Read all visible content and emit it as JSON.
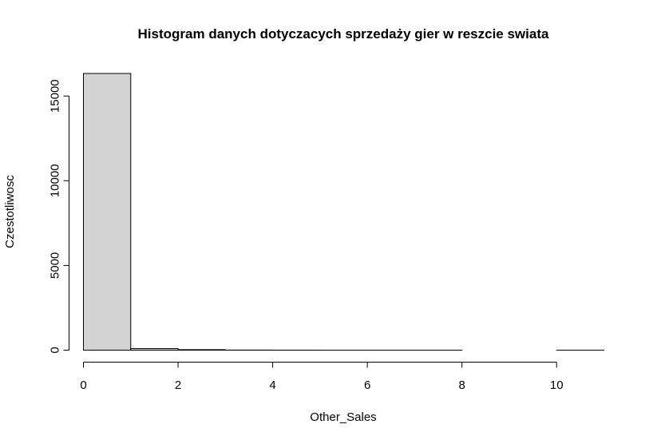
{
  "chart_data": {
    "type": "bar",
    "histogram": true,
    "title": "Histogram danych dotyczacych sprzedaży gier w reszcie swiata",
    "xlabel": "Other_Sales",
    "ylabel": "Czestotliwosc",
    "bins": [
      {
        "start": 0,
        "end": 1,
        "count": 16330
      },
      {
        "start": 1,
        "end": 2,
        "count": 94
      },
      {
        "start": 2,
        "end": 3,
        "count": 30
      },
      {
        "start": 3,
        "end": 4,
        "count": 7
      },
      {
        "start": 4,
        "end": 5,
        "count": 3
      },
      {
        "start": 5,
        "end": 6,
        "count": 1
      },
      {
        "start": 6,
        "end": 7,
        "count": 1
      },
      {
        "start": 7,
        "end": 8,
        "count": 1
      },
      {
        "start": 8,
        "end": 9,
        "count": 0
      },
      {
        "start": 9,
        "end": 10,
        "count": 0
      },
      {
        "start": 10,
        "end": 11,
        "count": 1
      }
    ],
    "xlim": [
      0,
      11
    ],
    "ylim": [
      0,
      16330
    ],
    "x_ticks": [
      0,
      2,
      4,
      6,
      8,
      10
    ],
    "y_ticks": [
      0,
      5000,
      10000,
      15000
    ],
    "bar_fill": "#d3d3d3",
    "bar_stroke": "#000000",
    "grid": false,
    "legend": "none"
  }
}
